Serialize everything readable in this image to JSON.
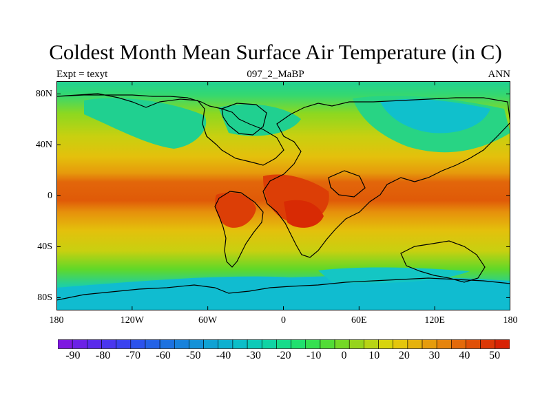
{
  "title": "Coldest Month Mean Surface Air Temperature (in C)",
  "subtitle_left": "Expt = texyt",
  "subtitle_center": "097_2_MaBP",
  "subtitle_right": "ANN",
  "map": {
    "projection": "cylindrical-equidistant",
    "lon_range": [
      -180,
      180
    ],
    "lat_range": [
      -90,
      90
    ],
    "y_tick_labels": [
      "80N",
      "40N",
      "0",
      "40S",
      "80S"
    ],
    "y_tick_values": [
      80,
      40,
      0,
      -40,
      -80
    ],
    "x_tick_labels": [
      "180",
      "120W",
      "60W",
      "0",
      "60E",
      "120E",
      "180"
    ],
    "x_tick_values": [
      -180,
      -120,
      -60,
      0,
      60,
      120,
      180
    ],
    "continent_outline_color": "#000000"
  },
  "colorbar": {
    "labels": [
      "-90",
      "-80",
      "-70",
      "-60",
      "-50",
      "-40",
      "-30",
      "-20",
      "-10",
      "0",
      "10",
      "20",
      "30",
      "40",
      "50"
    ],
    "levels": [
      -95,
      -90,
      -85,
      -80,
      -75,
      -70,
      -65,
      -60,
      -55,
      -50,
      -45,
      -40,
      -35,
      -30,
      -25,
      -20,
      -15,
      -10,
      -5,
      0,
      5,
      10,
      15,
      20,
      25,
      30,
      35,
      40,
      45,
      50,
      55
    ],
    "colors": [
      "#7e18e0",
      "#6c21e6",
      "#5a2beb",
      "#4a36ee",
      "#3a42ef",
      "#2c52ec",
      "#2462e6",
      "#1d72e0",
      "#1882dc",
      "#1492d8",
      "#10a2d4",
      "#0eb0d0",
      "#0cbec8",
      "#0ccab8",
      "#10d4a4",
      "#16dc8a",
      "#20e06e",
      "#34e050",
      "#52dc36",
      "#74d826",
      "#96d41c",
      "#b8d414",
      "#d8d40c",
      "#e4c60c",
      "#e6b20c",
      "#e69c0c",
      "#e6840c",
      "#e46a0a",
      "#e05008",
      "#dc3806",
      "#d82204"
    ]
  }
}
